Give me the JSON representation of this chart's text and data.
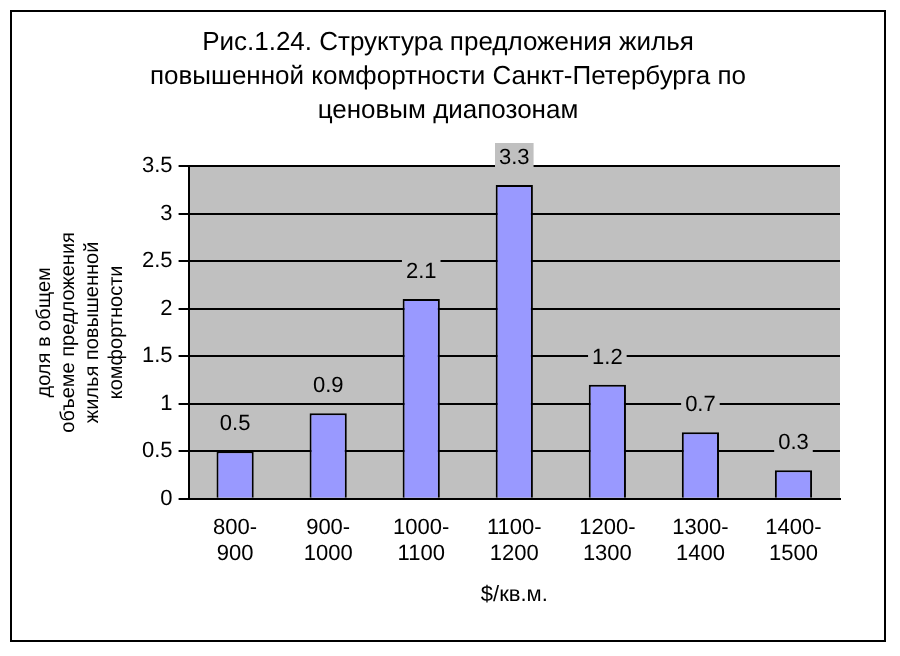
{
  "chart_data": {
    "type": "bar",
    "title": "Рис.1.24. Структура предложения жилья повышенной комфортности Санкт-Петербурга по ценовым диапозонам",
    "xlabel": "$/кв.м.",
    "ylabel": "доля в общем объеме предложения жилья повышенной комфортности",
    "categories": [
      "800-900",
      "900-1000",
      "1000-1100",
      "1100-1200",
      "1200-1300",
      "1300-1400",
      "1400-1500"
    ],
    "values": [
      0.5,
      0.9,
      2.1,
      3.3,
      1.2,
      0.7,
      0.3
    ],
    "color": "#9999ff",
    "ylim": [
      0,
      3.5
    ],
    "yticks": [
      0,
      0.5,
      1,
      1.5,
      2,
      2.5,
      3,
      3.5
    ],
    "grid": "y",
    "data_labels": true
  }
}
